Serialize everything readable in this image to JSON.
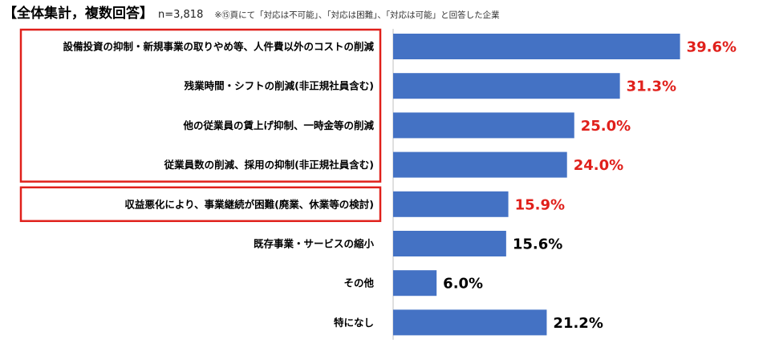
{
  "header": {
    "title": "【全体集計，複数回答】",
    "n_label": "n=3,818",
    "note": "※⑮頁にて「対応は不可能」、「対応は困難」、「対応は可能」と回答した企業"
  },
  "colors": {
    "bar": "#4472C4",
    "highlight_text": "#E0201B",
    "normal_text": "#000000",
    "box_border": "#E0201B",
    "axis": "#BFBFBF"
  },
  "chart_data": {
    "type": "bar",
    "orientation": "horizontal",
    "title": "",
    "xlabel": "",
    "ylabel": "",
    "xlim": [
      0,
      45
    ],
    "grid": false,
    "categories": [
      "設備投資の抑制・新規事業の取りやめ等、人件費以外のコストの削減",
      "残業時間・シフトの削減(非正規社員含む)",
      "他の従業員の賃上げ抑制、一時金等の削減",
      "従業員数の削減、採用の抑制(非正規社員含む)",
      "収益悪化により、事業継続が困難(廃業、休業等の検討)",
      "既存事業・サービスの縮小",
      "その他",
      "特になし"
    ],
    "values": [
      39.6,
      31.3,
      25.0,
      24.0,
      15.9,
      15.6,
      6.0,
      21.2
    ],
    "value_labels": [
      "39.6%",
      "31.3%",
      "25.0%",
      "24.0%",
      "15.9%",
      "15.6%",
      "6.0%",
      "21.2%"
    ],
    "highlighted": [
      true,
      true,
      true,
      true,
      true,
      false,
      false,
      false
    ],
    "highlight_groups": [
      [
        0,
        3
      ],
      [
        4,
        4
      ]
    ]
  }
}
